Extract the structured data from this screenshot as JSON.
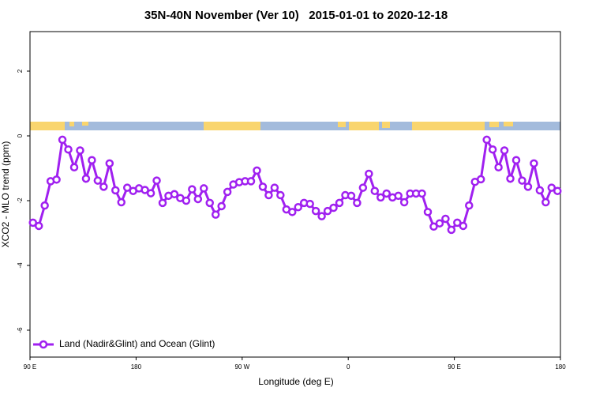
{
  "chart_data": {
    "type": "line",
    "title": "35N-40N November (Ver 10)   2015-01-01 to 2020-12-18",
    "xlabel": "Longitude (deg E)",
    "ylabel": "XCO2 - MLO trend (ppm)",
    "xlim": [
      90,
      540
    ],
    "xticks": [
      {
        "value": 90,
        "label": "90 E"
      },
      {
        "value": 180,
        "label": "180"
      },
      {
        "value": 270,
        "label": "90 W"
      },
      {
        "value": 360,
        "label": "0"
      },
      {
        "value": 450,
        "label": "90 E"
      },
      {
        "value": 540,
        "label": "180"
      }
    ],
    "ylim": [
      -6.83,
      3.22
    ],
    "yticks": [
      -6,
      -4,
      -2,
      0,
      2
    ],
    "legend": "bottom-left",
    "x": [
      92.5,
      97.5,
      102.5,
      107.5,
      112.5,
      117.5,
      122.5,
      127.5,
      132.5,
      137.5,
      142.5,
      147.5,
      152.5,
      157.5,
      162.5,
      167.5,
      172.5,
      177.5,
      182.5,
      187.5,
      192.5,
      197.5,
      202.5,
      207.5,
      212.5,
      217.5,
      222.5,
      227.5,
      232.5,
      237.5,
      242.5,
      247.5,
      252.5,
      257.5,
      262.5,
      267.5,
      272.5,
      277.5,
      282.5,
      287.5,
      292.5,
      297.5,
      302.5,
      307.5,
      312.5,
      317.5,
      322.5,
      327.5,
      332.5,
      337.5,
      342.5,
      347.5,
      352.5,
      357.5,
      362.5,
      367.5,
      372.5,
      377.5,
      382.5,
      387.5,
      392.5,
      397.5,
      402.5,
      407.5,
      412.5,
      417.5,
      422.5,
      427.5,
      432.5,
      437.5,
      442.5,
      447.5,
      452.5,
      457.5,
      462.5,
      467.5,
      472.5,
      477.5,
      482.5,
      487.5,
      492.5,
      497.5,
      502.5,
      507.5,
      512.5,
      517.5,
      522.5,
      527.5,
      532.5,
      537.5
    ],
    "series": [
      {
        "name": "Land (Nadir&Glint) and Ocean (Glint)",
        "color": "#a020f0",
        "values": [
          -2.68,
          -2.78,
          -2.15,
          -1.4,
          -1.35,
          -0.12,
          -0.42,
          -0.97,
          -0.45,
          -1.32,
          -0.75,
          -1.38,
          -1.57,
          -0.85,
          -1.68,
          -2.05,
          -1.6,
          -1.7,
          -1.62,
          -1.67,
          -1.77,
          -1.38,
          -2.07,
          -1.85,
          -1.8,
          -1.92,
          -2.0,
          -1.65,
          -1.95,
          -1.62,
          -2.07,
          -2.43,
          -2.17,
          -1.73,
          -1.5,
          -1.43,
          -1.4,
          -1.4,
          -1.07,
          -1.57,
          -1.83,
          -1.6,
          -1.83,
          -2.27,
          -2.35,
          -2.2,
          -2.07,
          -2.1,
          -2.32,
          -2.48,
          -2.32,
          -2.22,
          -2.07,
          -1.83,
          -1.85,
          -2.07,
          -1.6,
          -1.17,
          -1.7,
          -1.9,
          -1.78,
          -1.9,
          -1.85,
          -2.05,
          -1.78,
          -1.78,
          -1.78,
          -2.35,
          -2.8,
          -2.7,
          -2.56,
          -2.9,
          -2.68,
          -2.78,
          -2.15,
          -1.42,
          -1.34,
          -0.12,
          -0.42,
          -0.97,
          -0.45,
          -1.32,
          -0.75,
          -1.38,
          -1.57,
          -0.85,
          -1.68,
          -2.05,
          -1.6,
          -1.7
        ]
      }
    ]
  }
}
